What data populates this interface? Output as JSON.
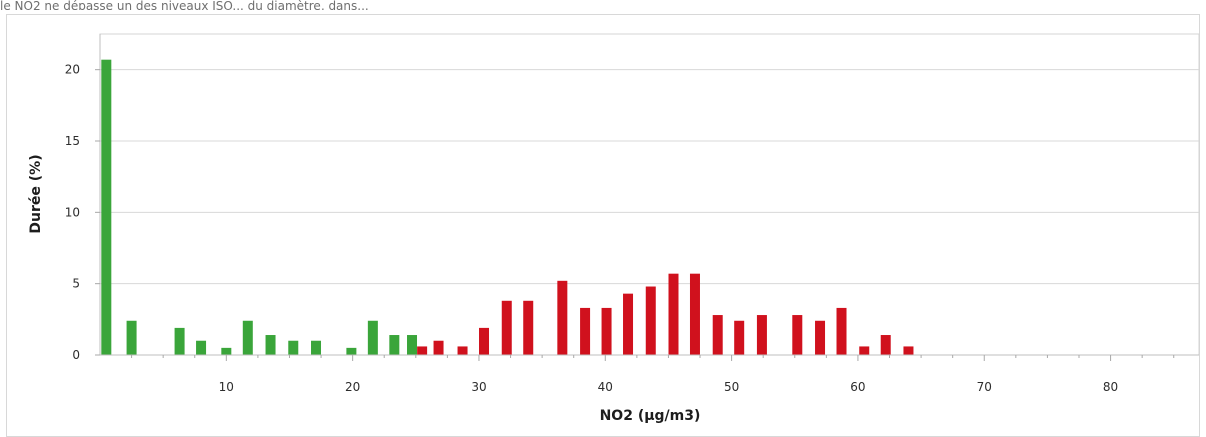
{
  "top_text": "le NO2 ne dépasse un des niveaux ISO... du diamètre, dans...",
  "chart_data": {
    "type": "bar",
    "xlabel": "NO2 (µg/m3)",
    "ylabel": "Durée (%)",
    "xlim": [
      0,
      87
    ],
    "ylim": [
      0,
      22.5
    ],
    "x_ticks": [
      10,
      20,
      30,
      40,
      50,
      60,
      70,
      80
    ],
    "y_ticks": [
      0,
      5,
      10,
      15,
      20
    ],
    "grid": true,
    "series": [
      {
        "color": "#3aa53a",
        "values": [
          {
            "x": 0.5,
            "y": 20.7
          },
          {
            "x": 2.5,
            "y": 2.4
          },
          {
            "x": 6.3,
            "y": 1.9
          },
          {
            "x": 8.0,
            "y": 1.0
          },
          {
            "x": 10.0,
            "y": 0.5
          },
          {
            "x": 11.7,
            "y": 2.4
          },
          {
            "x": 13.5,
            "y": 1.4
          },
          {
            "x": 15.3,
            "y": 1.0
          },
          {
            "x": 17.1,
            "y": 1.0
          },
          {
            "x": 19.9,
            "y": 0.5
          },
          {
            "x": 21.6,
            "y": 2.4
          },
          {
            "x": 23.3,
            "y": 1.4
          },
          {
            "x": 24.7,
            "y": 1.4
          }
        ]
      },
      {
        "color": "#d0111d",
        "values": [
          {
            "x": 25.5,
            "y": 0.6
          },
          {
            "x": 26.8,
            "y": 1.0
          },
          {
            "x": 28.7,
            "y": 0.6
          },
          {
            "x": 30.4,
            "y": 1.9
          },
          {
            "x": 32.2,
            "y": 3.8
          },
          {
            "x": 33.9,
            "y": 3.8
          },
          {
            "x": 36.6,
            "y": 5.2
          },
          {
            "x": 38.4,
            "y": 3.3
          },
          {
            "x": 40.1,
            "y": 3.3
          },
          {
            "x": 41.8,
            "y": 4.3
          },
          {
            "x": 43.6,
            "y": 4.8
          },
          {
            "x": 45.4,
            "y": 5.7
          },
          {
            "x": 47.1,
            "y": 5.7
          },
          {
            "x": 48.9,
            "y": 2.8
          },
          {
            "x": 50.6,
            "y": 2.4
          },
          {
            "x": 52.4,
            "y": 2.8
          },
          {
            "x": 55.2,
            "y": 2.8
          },
          {
            "x": 57.0,
            "y": 2.4
          },
          {
            "x": 58.7,
            "y": 3.3
          },
          {
            "x": 60.5,
            "y": 0.6
          },
          {
            "x": 62.2,
            "y": 1.4
          },
          {
            "x": 64.0,
            "y": 0.6
          }
        ]
      }
    ]
  }
}
